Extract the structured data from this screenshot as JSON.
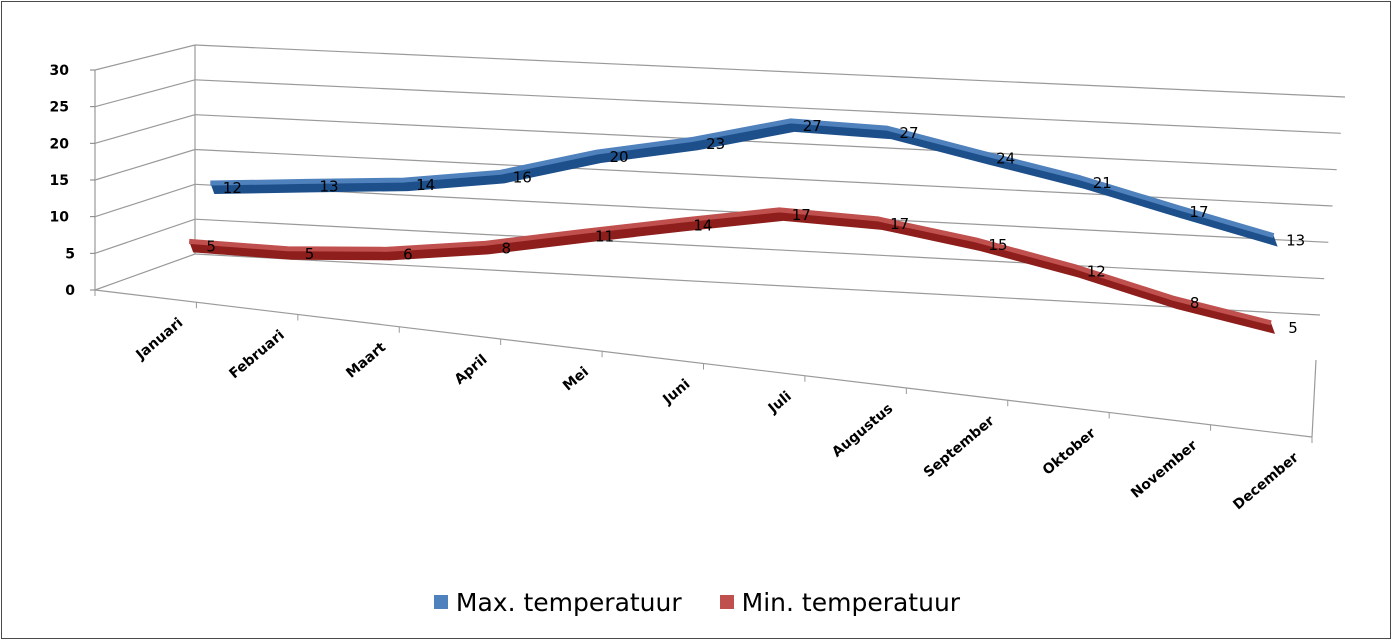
{
  "chart_data": {
    "type": "line",
    "style": "3d",
    "categories": [
      "Januari",
      "Februari",
      "Maart",
      "April",
      "Mei",
      "Juni",
      "Juli",
      "Augustus",
      "September",
      "Oktober",
      "November",
      "December"
    ],
    "series": [
      {
        "name": "Max. temperatuur",
        "color": "#4F81BD",
        "values": [
          12,
          13,
          14,
          16,
          20,
          23,
          27,
          27,
          24,
          21,
          17,
          13
        ]
      },
      {
        "name": "Min. temperatuur",
        "color": "#C0504D",
        "values": [
          5,
          5,
          6,
          8,
          11,
          14,
          17,
          17,
          15,
          12,
          8,
          5
        ]
      }
    ],
    "ylim": [
      0,
      30
    ],
    "yticks": [
      0,
      5,
      10,
      15,
      20,
      25,
      30
    ],
    "grid": true,
    "data_labels": true,
    "legend_position": "bottom"
  }
}
